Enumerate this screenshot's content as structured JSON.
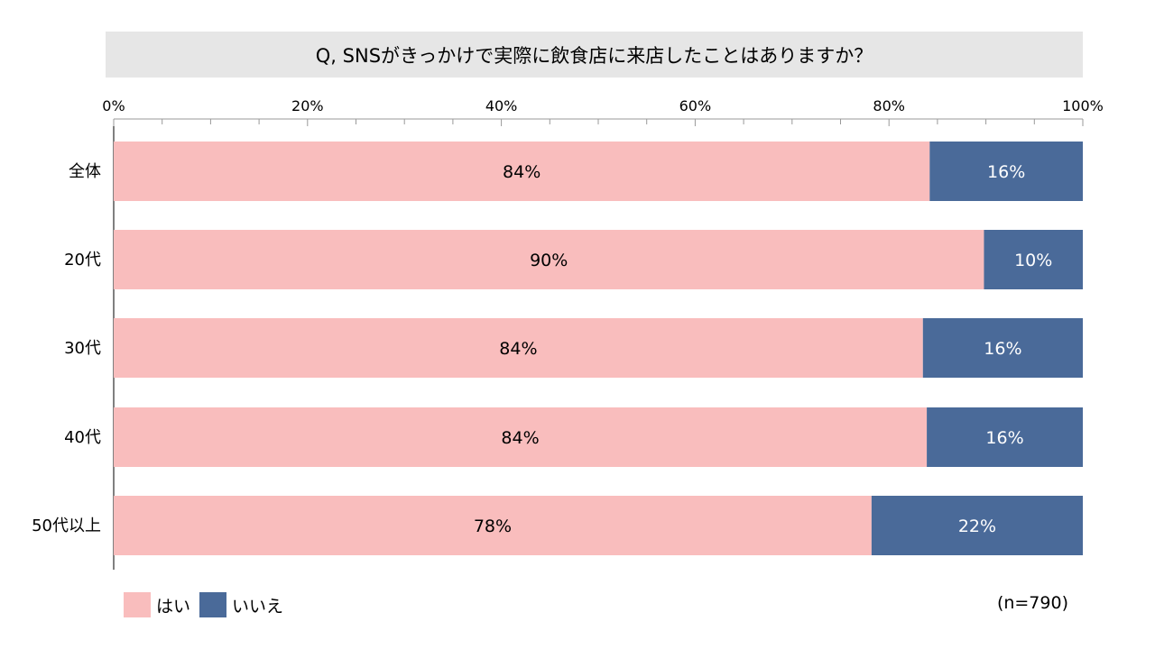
{
  "colors": {
    "yes": "#f9bdbd",
    "no": "#4a6a99",
    "title_bg": "#e6e6e6",
    "yes_label": "#000000",
    "no_label": "#ffffff"
  },
  "sample_note": "(n=790)",
  "chart_data": {
    "type": "bar",
    "orientation": "horizontal",
    "stacked": "percent",
    "title": "Q, SNSがきっかけで実際に飲食店に来店したことはありますか？",
    "categories": [
      "全体",
      "20代",
      "30代",
      "40代",
      "50代以上"
    ],
    "series": [
      {
        "name": "はい",
        "values": [
          84.2,
          89.8,
          83.5,
          83.9,
          78.2
        ],
        "labels": [
          "84%",
          "90%",
          "84%",
          "84%",
          "78%"
        ]
      },
      {
        "name": "いいえ",
        "values": [
          15.8,
          10.2,
          16.5,
          16.1,
          21.8
        ],
        "labels": [
          "16%",
          "10%",
          "16%",
          "16%",
          "22%"
        ]
      }
    ],
    "xlim": [
      0,
      100
    ],
    "xticks": [
      "0%",
      "20%",
      "40%",
      "60%",
      "80%",
      "100%"
    ],
    "xaxis_position": "top",
    "grid": false,
    "legend": "bottom-left"
  }
}
